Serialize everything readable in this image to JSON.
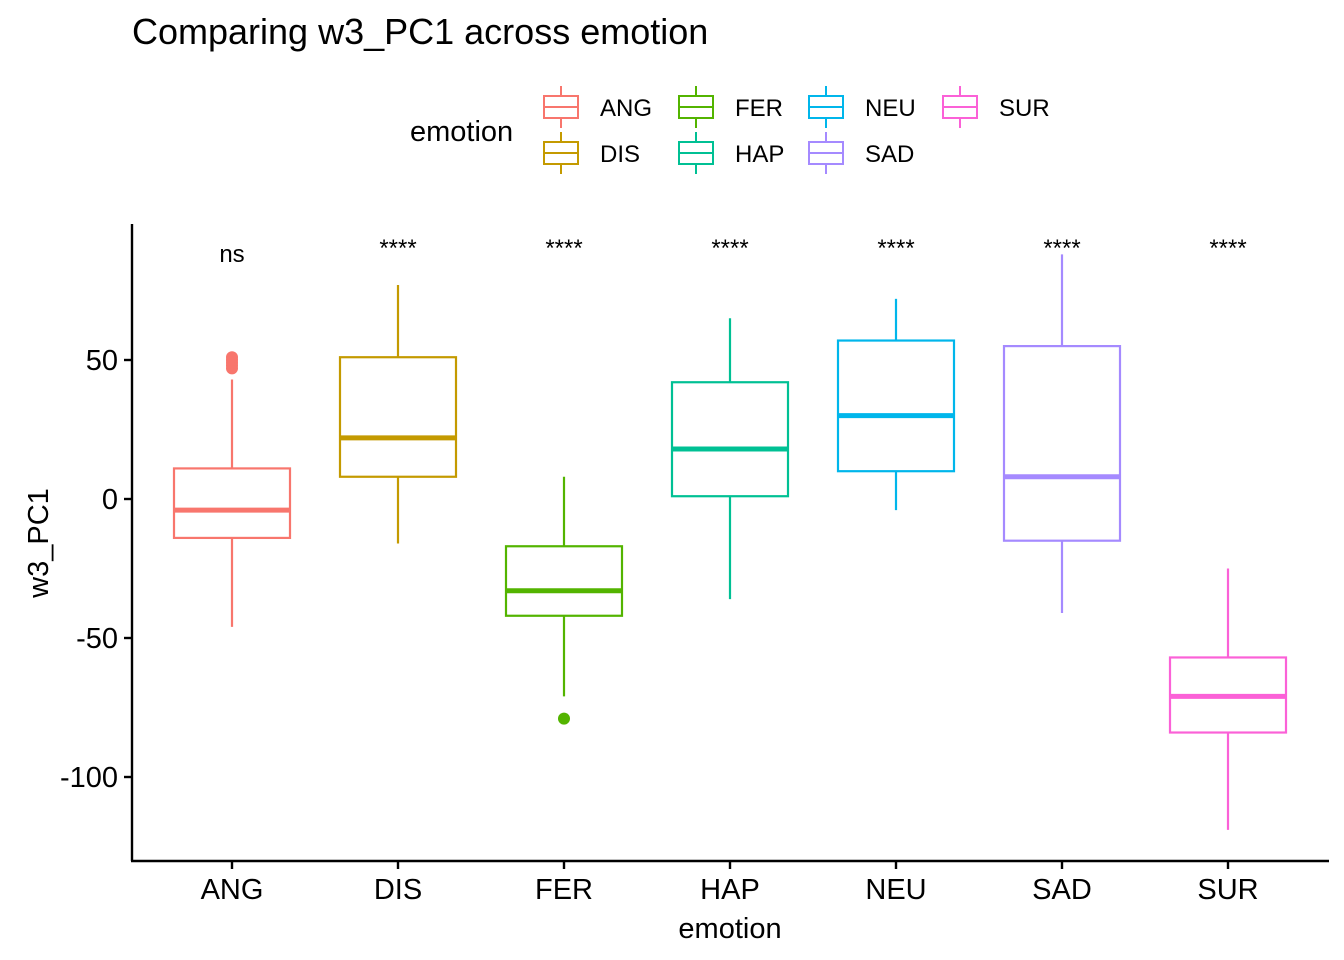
{
  "chart_data": {
    "type": "box",
    "title": "Comparing w3_PC1 across emotion",
    "xlabel": "emotion",
    "ylabel": "w3_PC1",
    "ylim": [
      -130,
      92
    ],
    "yticks": [
      50,
      0,
      -50,
      -100
    ],
    "ytick_labels": [
      "50",
      "0",
      "-50",
      "-100"
    ],
    "legend": {
      "title": "emotion",
      "position": "top",
      "items": [
        "ANG",
        "DIS",
        "FER",
        "HAP",
        "NEU",
        "SAD",
        "SUR"
      ]
    },
    "grid": false,
    "categories": [
      "ANG",
      "DIS",
      "FER",
      "HAP",
      "NEU",
      "SAD",
      "SUR"
    ],
    "colors": [
      "#F8766D",
      "#C49A00",
      "#53B400",
      "#00C094",
      "#00B6EB",
      "#A58AFF",
      "#FB61D7"
    ],
    "significance": [
      "ns",
      "****",
      "****",
      "****",
      "****",
      "****",
      "****"
    ],
    "boxes": [
      {
        "category": "ANG",
        "whisker_low": -46,
        "q1": -14,
        "median": -4,
        "q3": 11,
        "whisker_high": 43,
        "outliers": [
          47,
          48,
          49,
          50,
          51
        ]
      },
      {
        "category": "DIS",
        "whisker_low": -16,
        "q1": 8,
        "median": 22,
        "q3": 51,
        "whisker_high": 77,
        "outliers": []
      },
      {
        "category": "FER",
        "whisker_low": -71,
        "q1": -42,
        "median": -33,
        "q3": -17,
        "whisker_high": 8,
        "outliers": [
          -79
        ]
      },
      {
        "category": "HAP",
        "whisker_low": -36,
        "q1": 1,
        "median": 18,
        "q3": 42,
        "whisker_high": 65,
        "outliers": []
      },
      {
        "category": "NEU",
        "whisker_low": -4,
        "q1": 10,
        "median": 30,
        "q3": 57,
        "whisker_high": 72,
        "outliers": []
      },
      {
        "category": "SAD",
        "whisker_low": -41,
        "q1": -15,
        "median": 8,
        "q3": 55,
        "whisker_high": 88,
        "outliers": []
      },
      {
        "category": "SUR",
        "whisker_low": -119,
        "q1": -84,
        "median": -71,
        "q3": -57,
        "whisker_high": -25,
        "outliers": []
      }
    ]
  }
}
